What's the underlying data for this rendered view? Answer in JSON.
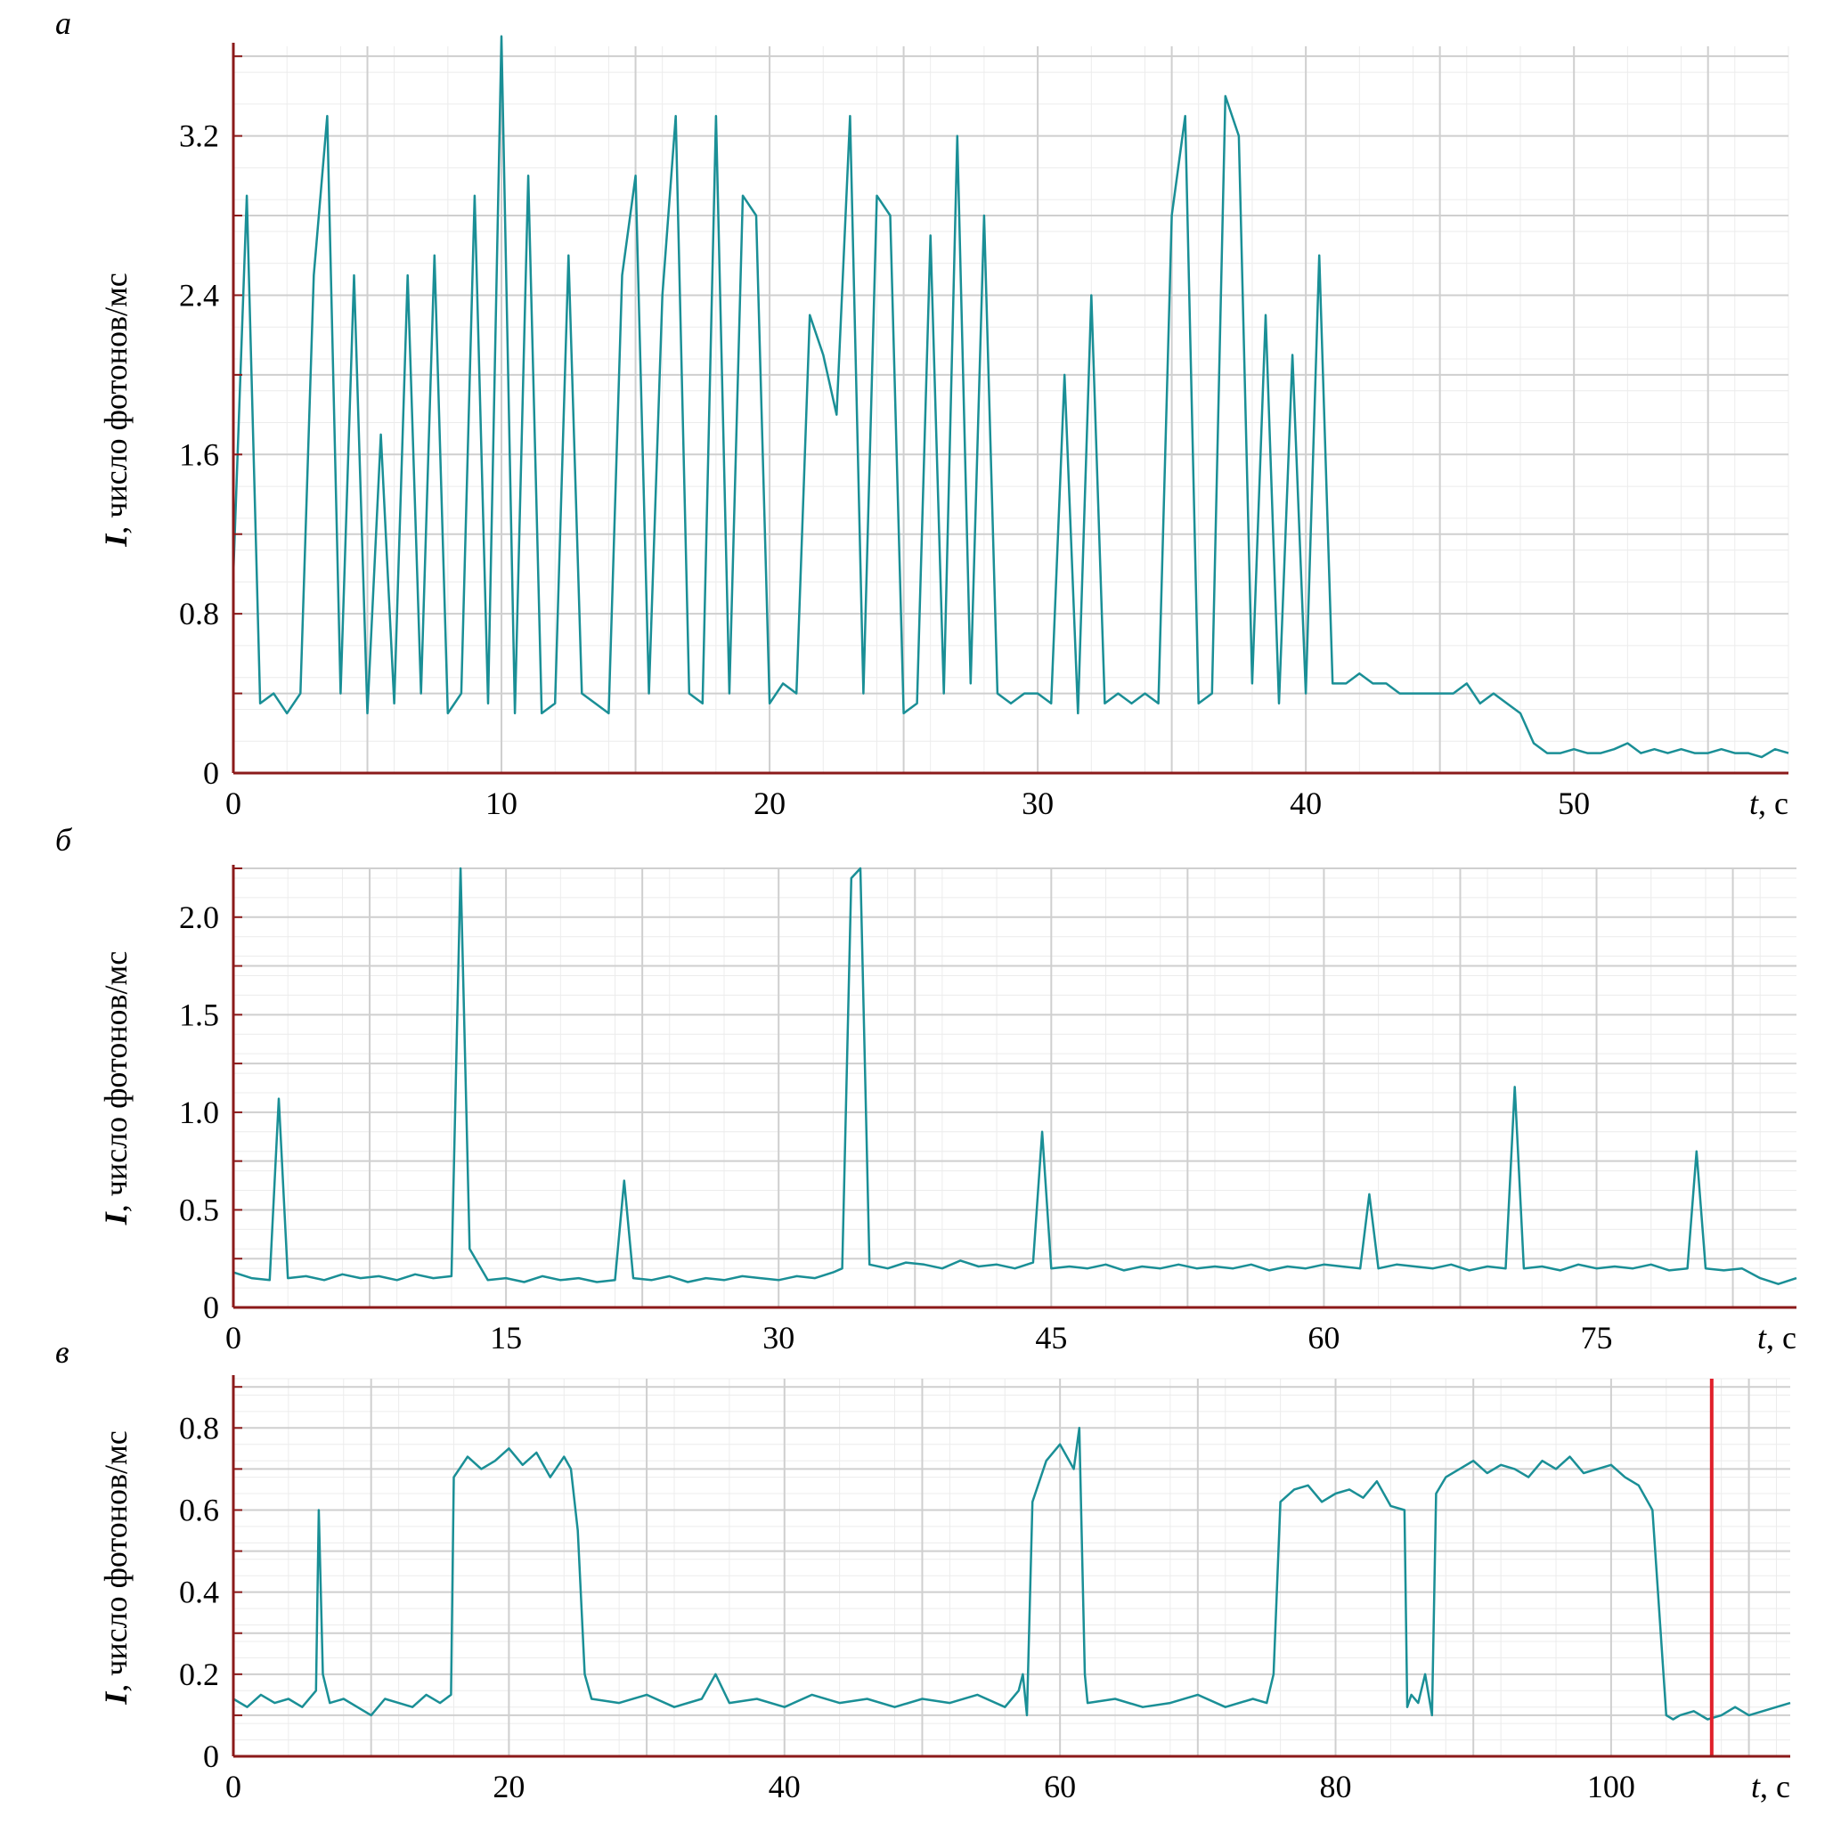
{
  "colors": {
    "trace": "#1a8f96",
    "axis": "#8b1a1a",
    "marker": "#e0202a",
    "grid_major": "#cfcfcf",
    "grid_minor": "#ececec"
  },
  "chart_data": [
    {
      "panel_label": "а",
      "type": "line",
      "ylabel_italic": "I",
      "ylabel_rest": ", число фотонов/мс",
      "xlabel_italic": "t",
      "xlabel_rest": ", с",
      "xlim": [
        0,
        58
      ],
      "ylim": [
        0,
        3.65
      ],
      "xticks": [
        0,
        10,
        20,
        30,
        40,
        50
      ],
      "xtick_labels": [
        "0",
        "10",
        "20",
        "30",
        "40",
        "50"
      ],
      "yticks": [
        0,
        0.8,
        1.6,
        2.4,
        3.2
      ],
      "ytick_labels": [
        "0",
        "0.8",
        "1.6",
        "2.4",
        "3.2"
      ],
      "grid": true,
      "x": [
        0,
        0.5,
        1,
        1.5,
        2,
        2.5,
        3,
        3.5,
        4,
        4.5,
        5,
        5.5,
        6,
        6.5,
        7,
        7.5,
        8,
        8.5,
        9,
        9.5,
        10,
        10.5,
        11,
        11.5,
        12,
        12.5,
        13,
        13.5,
        14,
        14.5,
        15,
        15.5,
        16,
        16.5,
        17,
        17.5,
        18,
        18.5,
        19,
        19.5,
        20,
        20.5,
        21,
        21.5,
        22,
        22.5,
        23,
        23.5,
        24,
        24.5,
        25,
        25.5,
        26,
        26.5,
        27,
        27.5,
        28,
        28.5,
        29,
        29.5,
        30,
        30.5,
        31,
        31.5,
        32,
        32.5,
        33,
        33.5,
        34,
        34.5,
        35,
        35.5,
        36,
        36.5,
        37,
        37.5,
        38,
        38.5,
        39,
        39.5,
        40,
        40.5,
        41,
        41.5,
        42,
        42.5,
        43,
        43.5,
        44,
        44.5,
        45,
        45.5,
        46,
        46.5,
        47,
        47.5,
        48,
        48.5,
        49,
        49.5,
        50,
        50.5,
        51,
        51.5,
        52,
        52.5,
        53,
        53.5,
        54,
        54.5,
        55,
        55.5,
        56,
        56.5,
        57,
        57.5,
        58
      ],
      "y": [
        1.0,
        2.9,
        0.35,
        0.4,
        0.3,
        0.4,
        2.5,
        3.3,
        0.4,
        2.5,
        0.3,
        1.7,
        0.35,
        2.5,
        0.4,
        2.6,
        0.3,
        0.4,
        2.9,
        0.35,
        3.7,
        0.3,
        3.0,
        0.3,
        0.35,
        2.6,
        0.4,
        0.35,
        0.3,
        2.5,
        3.0,
        0.4,
        2.4,
        3.3,
        0.4,
        0.35,
        3.3,
        0.4,
        2.9,
        2.8,
        0.35,
        0.45,
        0.4,
        2.3,
        2.1,
        1.8,
        3.3,
        0.4,
        2.9,
        2.8,
        0.3,
        0.35,
        2.7,
        0.4,
        3.2,
        0.45,
        2.8,
        0.4,
        0.35,
        0.4,
        0.4,
        0.35,
        2.0,
        0.3,
        2.4,
        0.35,
        0.4,
        0.35,
        0.4,
        0.35,
        2.8,
        3.3,
        0.35,
        0.4,
        3.4,
        3.2,
        0.45,
        2.3,
        0.35,
        2.1,
        0.4,
        2.6,
        0.45,
        0.45,
        0.5,
        0.45,
        0.45,
        0.4,
        0.4,
        0.4,
        0.4,
        0.4,
        0.45,
        0.35,
        0.4,
        0.35,
        0.3,
        0.15,
        0.1,
        0.1,
        0.12,
        0.1,
        0.1,
        0.12,
        0.15,
        0.1,
        0.12,
        0.1,
        0.12,
        0.1,
        0.1,
        0.12,
        0.1,
        0.1,
        0.08,
        0.12,
        0.1
      ]
    },
    {
      "panel_label": "б",
      "type": "line",
      "ylabel_italic": "I",
      "ylabel_rest": ", число фотонов/мс",
      "xlabel_italic": "t",
      "xlabel_rest": ", с",
      "xlim": [
        0,
        86
      ],
      "ylim": [
        0,
        2.25
      ],
      "xticks": [
        0,
        15,
        30,
        45,
        60,
        75
      ],
      "xtick_labels": [
        "0",
        "15",
        "30",
        "45",
        "60",
        "75"
      ],
      "yticks": [
        0,
        0.5,
        1.0,
        1.5,
        2.0
      ],
      "ytick_labels": [
        "0",
        "0.5",
        "1.0",
        "1.5",
        "2.0"
      ],
      "grid": true,
      "x": [
        0,
        1,
        2,
        2.5,
        3,
        4,
        5,
        6,
        7,
        8,
        9,
        10,
        11,
        12,
        12.5,
        13,
        14,
        15,
        16,
        17,
        18,
        19,
        20,
        21,
        21.5,
        22,
        23,
        24,
        25,
        26,
        27,
        28,
        29,
        30,
        31,
        32,
        33,
        33.5,
        34,
        34.5,
        35,
        36,
        37,
        38,
        39,
        40,
        41,
        42,
        43,
        44,
        44.5,
        45,
        46,
        47,
        48,
        49,
        50,
        51,
        52,
        53,
        54,
        55,
        56,
        57,
        58,
        59,
        60,
        61,
        62,
        62.5,
        63,
        64,
        65,
        66,
        67,
        68,
        69,
        70,
        70.5,
        71,
        72,
        73,
        74,
        75,
        76,
        77,
        78,
        79,
        80,
        80.5,
        81,
        82,
        83,
        84,
        85,
        86
      ],
      "y": [
        0.18,
        0.15,
        0.14,
        1.07,
        0.15,
        0.16,
        0.14,
        0.17,
        0.15,
        0.16,
        0.14,
        0.17,
        0.15,
        0.16,
        2.25,
        0.3,
        0.14,
        0.15,
        0.13,
        0.16,
        0.14,
        0.15,
        0.13,
        0.14,
        0.65,
        0.15,
        0.14,
        0.16,
        0.13,
        0.15,
        0.14,
        0.16,
        0.15,
        0.14,
        0.16,
        0.15,
        0.18,
        0.2,
        2.2,
        2.25,
        0.22,
        0.2,
        0.23,
        0.22,
        0.2,
        0.24,
        0.21,
        0.22,
        0.2,
        0.23,
        0.9,
        0.2,
        0.21,
        0.2,
        0.22,
        0.19,
        0.21,
        0.2,
        0.22,
        0.2,
        0.21,
        0.2,
        0.22,
        0.19,
        0.21,
        0.2,
        0.22,
        0.21,
        0.2,
        0.58,
        0.2,
        0.22,
        0.21,
        0.2,
        0.22,
        0.19,
        0.21,
        0.2,
        1.13,
        0.2,
        0.21,
        0.19,
        0.22,
        0.2,
        0.21,
        0.2,
        0.22,
        0.19,
        0.2,
        0.8,
        0.2,
        0.19,
        0.2,
        0.15,
        0.12,
        0.15
      ]
    },
    {
      "panel_label": "в",
      "type": "line",
      "ylabel_italic": "I",
      "ylabel_rest": ", число фотонов/мс",
      "xlabel_italic": "t",
      "xlabel_rest": ", с",
      "xlim": [
        0,
        113
      ],
      "ylim": [
        0,
        0.92
      ],
      "xticks": [
        0,
        20,
        40,
        60,
        80,
        100
      ],
      "xtick_labels": [
        "0",
        "20",
        "40",
        "60",
        "80",
        "100"
      ],
      "yticks": [
        0,
        0.2,
        0.4,
        0.6,
        0.8
      ],
      "ytick_labels": [
        "0",
        "0.2",
        "0.4",
        "0.6",
        "0.8"
      ],
      "grid": true,
      "marker_line_x": 107.3,
      "x": [
        0,
        1,
        2,
        3,
        4,
        5,
        6,
        6.2,
        6.5,
        7,
        8,
        9,
        10,
        11,
        12,
        13,
        14,
        15,
        15.8,
        16,
        17,
        18,
        19,
        20,
        21,
        22,
        23,
        24,
        24.5,
        25,
        25.5,
        26,
        28,
        30,
        32,
        34,
        35,
        36,
        38,
        40,
        42,
        44,
        46,
        48,
        50,
        52,
        54,
        56,
        57,
        57.3,
        57.6,
        58,
        59,
        60,
        61,
        61.4,
        61.8,
        62,
        64,
        66,
        68,
        70,
        72,
        74,
        75,
        75.5,
        76,
        77,
        78,
        79,
        80,
        81,
        82,
        83,
        84,
        85,
        85.2,
        85.5,
        86,
        86.5,
        87,
        87.3,
        88,
        89,
        90,
        91,
        92,
        93,
        94,
        95,
        96,
        97,
        98,
        99,
        100,
        101,
        102,
        103,
        104,
        104.5,
        105,
        106,
        107,
        108,
        109,
        110,
        111,
        112,
        113
      ],
      "y": [
        0.14,
        0.12,
        0.15,
        0.13,
        0.14,
        0.12,
        0.16,
        0.6,
        0.2,
        0.13,
        0.14,
        0.12,
        0.1,
        0.14,
        0.13,
        0.12,
        0.15,
        0.13,
        0.15,
        0.68,
        0.73,
        0.7,
        0.72,
        0.75,
        0.71,
        0.74,
        0.68,
        0.73,
        0.7,
        0.55,
        0.2,
        0.14,
        0.13,
        0.15,
        0.12,
        0.14,
        0.2,
        0.13,
        0.14,
        0.12,
        0.15,
        0.13,
        0.14,
        0.12,
        0.14,
        0.13,
        0.15,
        0.12,
        0.16,
        0.2,
        0.1,
        0.62,
        0.72,
        0.76,
        0.7,
        0.8,
        0.2,
        0.13,
        0.14,
        0.12,
        0.13,
        0.15,
        0.12,
        0.14,
        0.13,
        0.2,
        0.62,
        0.65,
        0.66,
        0.62,
        0.64,
        0.65,
        0.63,
        0.67,
        0.61,
        0.6,
        0.12,
        0.15,
        0.13,
        0.2,
        0.1,
        0.64,
        0.68,
        0.7,
        0.72,
        0.69,
        0.71,
        0.7,
        0.68,
        0.72,
        0.7,
        0.73,
        0.69,
        0.7,
        0.71,
        0.68,
        0.66,
        0.6,
        0.1,
        0.09,
        0.1,
        0.11,
        0.09,
        0.1,
        0.12,
        0.1,
        0.11,
        0.12,
        0.13
      ]
    }
  ]
}
